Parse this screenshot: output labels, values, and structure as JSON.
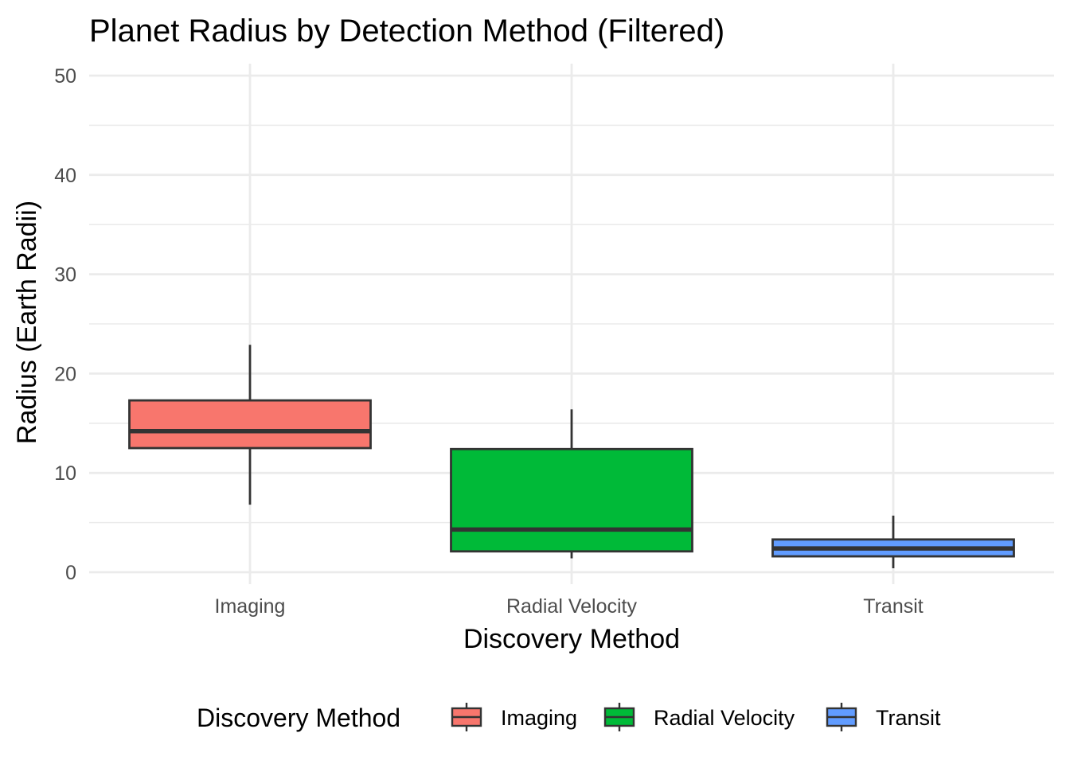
{
  "chart_data": {
    "type": "box",
    "title": "Planet Radius by Detection Method (Filtered)",
    "xlabel": "Discovery Method",
    "ylabel": "Radius (Earth Radii)",
    "categories": [
      "Imaging",
      "Radial Velocity",
      "Transit"
    ],
    "ylim": [
      -1.2,
      51.2
    ],
    "y_ticks": [
      0,
      10,
      20,
      30,
      40,
      50
    ],
    "y_minor_ticks": [
      5,
      15,
      25,
      35,
      45
    ],
    "grid": true,
    "boxes": [
      {
        "category": "Imaging",
        "whisker_low": 6.8,
        "q1": 12.5,
        "median": 14.2,
        "q3": 17.3,
        "whisker_high": 22.9,
        "color": "#F8766D"
      },
      {
        "category": "Radial Velocity",
        "whisker_low": 1.4,
        "q1": 2.1,
        "median": 4.3,
        "q3": 12.4,
        "whisker_high": 16.4,
        "color": "#00BA38"
      },
      {
        "category": "Transit",
        "whisker_low": 0.4,
        "q1": 1.6,
        "median": 2.4,
        "q3": 3.3,
        "whisker_high": 5.7,
        "color": "#619CFF"
      }
    ],
    "legend": {
      "title": "Discovery Method",
      "position": "bottom",
      "entries": [
        {
          "label": "Imaging",
          "color": "#F8766D"
        },
        {
          "label": "Radial Velocity",
          "color": "#00BA38"
        },
        {
          "label": "Transit",
          "color": "#619CFF"
        }
      ]
    },
    "outline_color": "#333333"
  }
}
